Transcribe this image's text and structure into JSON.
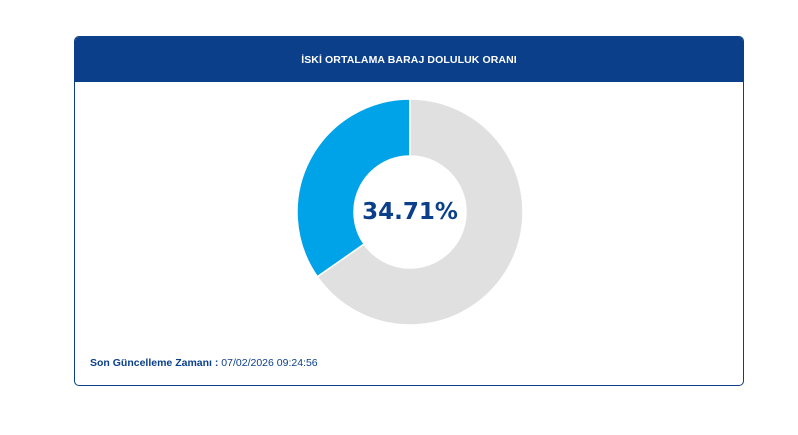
{
  "panel": {
    "title": "İSKİ ORTALAMA BARAJ DOLULUK ORANI",
    "value_label": "34.71%",
    "footer_label": "Son Güncelleme Zamanı",
    "footer_separator": " : ",
    "footer_value": "07/02/2026 09:24:56"
  },
  "colors": {
    "header_bg": "#0b3f8a",
    "filled": "#00a3e8",
    "empty": "#e0e0e0",
    "text": "#0b3f8a"
  },
  "chart_data": {
    "type": "pie",
    "donut": true,
    "title": "İSKİ ORTALAMA BARAJ DOLULUK ORANI",
    "center_label": "34.71%",
    "slices": [
      {
        "value": 34.71,
        "color": "#00a3e8"
      },
      {
        "value": 65.29,
        "color": "#e0e0e0"
      }
    ]
  }
}
